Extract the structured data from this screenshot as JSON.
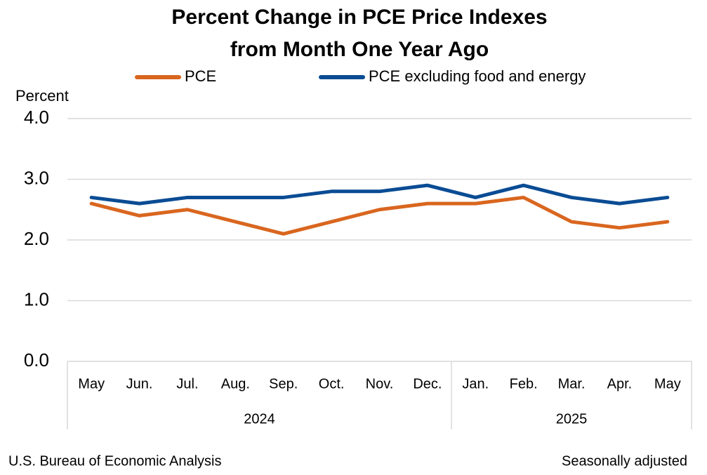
{
  "chart_data": {
    "type": "line",
    "title": [
      "Percent Change in PCE Price Indexes",
      "from Month One Year Ago"
    ],
    "y_label": "Percent",
    "category_groups": [
      {
        "label": "2024",
        "categories": [
          "May",
          "Jun.",
          "Jul.",
          "Aug.",
          "Sep.",
          "Oct.",
          "Nov.",
          "Dec."
        ]
      },
      {
        "label": "2025",
        "categories": [
          "Jan.",
          "Feb.",
          "Mar.",
          "Apr.",
          "May"
        ]
      }
    ],
    "series": [
      {
        "name": "PCE",
        "color": "#d9661f",
        "values": [
          2.6,
          2.4,
          2.5,
          2.3,
          2.1,
          2.3,
          2.5,
          2.6,
          2.6,
          2.7,
          2.3,
          2.2,
          2.3
        ]
      },
      {
        "name": "PCE excluding food and energy",
        "color": "#0a4c94",
        "values": [
          2.7,
          2.6,
          2.7,
          2.7,
          2.7,
          2.8,
          2.8,
          2.9,
          2.7,
          2.9,
          2.7,
          2.6,
          2.7
        ]
      }
    ],
    "ylim": [
      0,
      4
    ],
    "yticks": [
      {
        "value": 0,
        "label": "0.0"
      },
      {
        "value": 1,
        "label": "1.0"
      },
      {
        "value": 2,
        "label": "2.0"
      },
      {
        "value": 3,
        "label": "3.0"
      },
      {
        "value": 4,
        "label": "4.0"
      }
    ],
    "grid": true,
    "source": "U.S. Bureau of Economic Analysis",
    "note": "Seasonally adjusted"
  }
}
